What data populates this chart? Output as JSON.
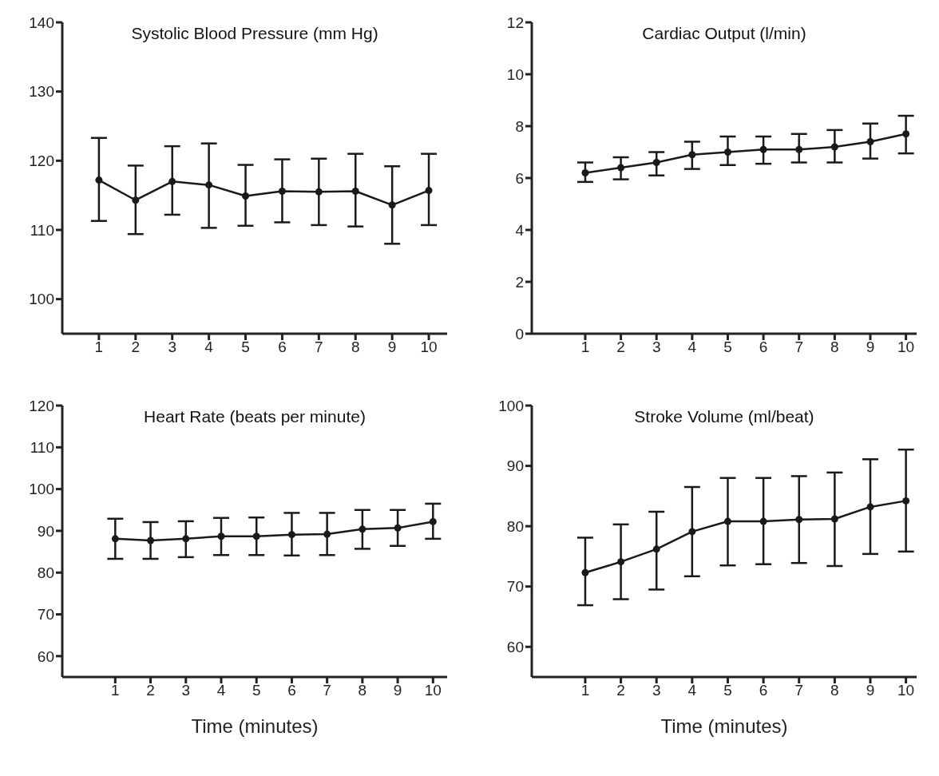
{
  "chart_data": [
    {
      "type": "line",
      "title": "Systolic Blood Pressure (mm Hg)",
      "x": [
        1,
        2,
        3,
        4,
        5,
        6,
        7,
        8,
        9,
        10
      ],
      "xlim": [
        0,
        10.5
      ],
      "xticks": [
        1,
        2,
        3,
        4,
        5,
        6,
        7,
        8,
        9,
        10
      ],
      "ylim": [
        95,
        140
      ],
      "yticks": [
        100,
        110,
        120,
        130,
        140
      ],
      "marker": "circle",
      "line_style": "solid",
      "series": [
        {
          "color": "#1a1a1a",
          "values": [
            117.2,
            114.3,
            117.0,
            116.5,
            114.9,
            115.6,
            115.5,
            115.6,
            113.6,
            115.7
          ],
          "errors": [
            [
              111.3,
              123.3
            ],
            [
              109.4,
              119.3
            ],
            [
              112.2,
              122.1
            ],
            [
              110.3,
              122.5
            ],
            [
              110.6,
              119.4
            ],
            [
              111.1,
              120.2
            ],
            [
              110.7,
              120.3
            ],
            [
              110.5,
              121.0
            ],
            [
              108.0,
              119.2
            ],
            [
              110.7,
              121.0
            ]
          ]
        }
      ]
    },
    {
      "type": "line",
      "title": "Cardiac Output (l/min)",
      "x": [
        1,
        2,
        3,
        4,
        5,
        6,
        7,
        8,
        9,
        10
      ],
      "xlim": [
        -0.5,
        10.3
      ],
      "xticks": [
        1,
        2,
        3,
        4,
        5,
        6,
        7,
        8,
        9,
        10
      ],
      "ylim": [
        0,
        12
      ],
      "yticks": [
        0,
        2,
        4,
        6,
        8,
        10,
        12
      ],
      "marker": "circle",
      "line_style": "solid",
      "series": [
        {
          "color": "#1a1a1a",
          "values": [
            6.2,
            6.4,
            6.6,
            6.9,
            7.0,
            7.1,
            7.1,
            7.2,
            7.4,
            7.7
          ],
          "errors": [
            [
              5.85,
              6.6
            ],
            [
              5.95,
              6.8
            ],
            [
              6.1,
              7.0
            ],
            [
              6.35,
              7.4
            ],
            [
              6.5,
              7.6
            ],
            [
              6.55,
              7.6
            ],
            [
              6.6,
              7.7
            ],
            [
              6.6,
              7.85
            ],
            [
              6.75,
              8.1
            ],
            [
              6.95,
              8.4
            ]
          ]
        }
      ]
    },
    {
      "type": "line",
      "title": "Heart Rate (beats per minute)",
      "xlabel": "Time (minutes)",
      "x": [
        1,
        2,
        3,
        4,
        5,
        6,
        7,
        8,
        9,
        10
      ],
      "xlim": [
        -0.5,
        10.4
      ],
      "xticks": [
        1,
        2,
        3,
        4,
        5,
        6,
        7,
        8,
        9,
        10
      ],
      "ylim": [
        55,
        120
      ],
      "yticks": [
        60,
        70,
        80,
        90,
        100,
        110,
        120
      ],
      "marker": "circle",
      "line_style": "solid",
      "series": [
        {
          "color": "#1a1a1a",
          "values": [
            88.1,
            87.7,
            88.1,
            88.7,
            88.7,
            89.1,
            89.2,
            90.4,
            90.7,
            92.2
          ],
          "errors": [
            [
              83.3,
              92.9
            ],
            [
              83.3,
              92.1
            ],
            [
              83.7,
              92.3
            ],
            [
              84.2,
              93.1
            ],
            [
              84.2,
              93.2
            ],
            [
              84.1,
              94.3
            ],
            [
              84.2,
              94.3
            ],
            [
              85.7,
              95.0
            ],
            [
              86.4,
              95.0
            ],
            [
              88.1,
              96.5
            ]
          ]
        }
      ]
    },
    {
      "type": "line",
      "title": "Stroke Volume (ml/beat)",
      "xlabel": "Time (minutes)",
      "x": [
        1,
        2,
        3,
        4,
        5,
        6,
        7,
        8,
        9,
        10
      ],
      "xlim": [
        -0.5,
        10.3
      ],
      "xticks": [
        1,
        2,
        3,
        4,
        5,
        6,
        7,
        8,
        9,
        10
      ],
      "ylim": [
        55,
        100
      ],
      "yticks": [
        60,
        70,
        80,
        90,
        100
      ],
      "marker": "circle",
      "line_style": "solid",
      "series": [
        {
          "color": "#1a1a1a",
          "values": [
            72.3,
            74.1,
            76.2,
            79.1,
            80.8,
            80.8,
            81.1,
            81.2,
            83.2,
            84.2
          ],
          "errors": [
            [
              66.9,
              78.1
            ],
            [
              67.9,
              80.3
            ],
            [
              69.5,
              82.4
            ],
            [
              71.7,
              86.5
            ],
            [
              73.5,
              88.0
            ],
            [
              73.7,
              88.0
            ],
            [
              73.9,
              88.3
            ],
            [
              73.4,
              88.9
            ],
            [
              75.4,
              91.1
            ],
            [
              75.8,
              92.7
            ]
          ]
        }
      ]
    }
  ]
}
